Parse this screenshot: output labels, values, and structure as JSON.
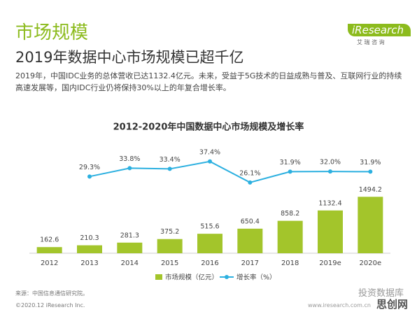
{
  "header": {
    "section": "市场规模",
    "logo": "iResearch",
    "logo_sub": "艾 瑞 咨 询",
    "headline": "2019年数据中心市场规模已超千亿",
    "body": "2019年，中国IDC业务的总体营收已达1132.4亿元。未来，受益于5G技术的日益成熟与普及、互联网行业的持续高速发展等，国内IDC行业仍将保持30%以上的年复合增长率。"
  },
  "chart_data": {
    "type": "bar",
    "title": "2012-2020年中国数据中心市场规模及增长率",
    "categories": [
      "2012",
      "2013",
      "2014",
      "2015",
      "2016",
      "2017",
      "2018",
      "2019e",
      "2020e"
    ],
    "series": [
      {
        "name": "市场规模（亿元）",
        "type": "bar",
        "color": "#a3c52b",
        "values": [
          162.6,
          210.3,
          281.3,
          375.2,
          515.6,
          650.4,
          858.2,
          1132.4,
          1494.2
        ]
      },
      {
        "name": "增长率（%）",
        "type": "line",
        "axis": "y2",
        "color": "#2cb0e0",
        "values": [
          null,
          29.3,
          33.8,
          33.4,
          37.4,
          26.1,
          31.9,
          32.0,
          31.9
        ],
        "value_labels": [
          null,
          "29.3%",
          "33.8%",
          "33.4%",
          "37.4%",
          "26.1%",
          "31.9%",
          "32.0%",
          "31.9%"
        ]
      }
    ],
    "ylim": [
      0,
      3000
    ],
    "y2lim": [
      -12,
      49
    ]
  },
  "footer": {
    "source": "来源：中国信息通信研究院。",
    "copyright": "©2020.12 iResearch Inc.",
    "site": "www.iresearch.com.cn",
    "watermark": "投资数据库",
    "watermark2": "思创网"
  }
}
